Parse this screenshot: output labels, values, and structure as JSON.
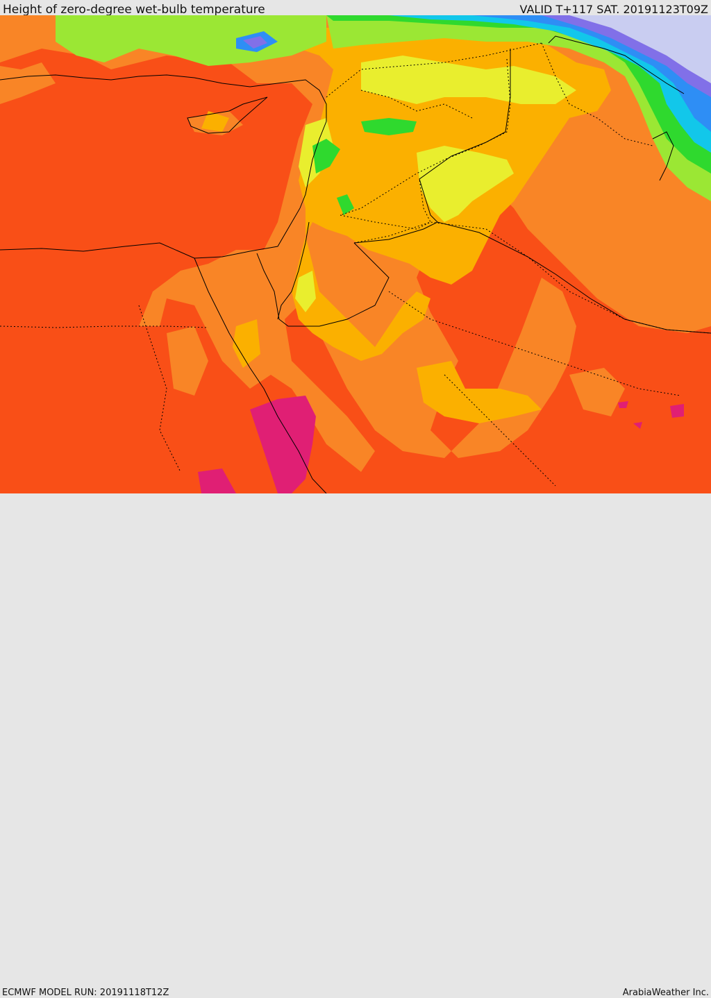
{
  "header": {
    "title": "Height of zero-degree wet-bulb temperature",
    "valid": "VALID T+117 SAT. 20191123T09Z"
  },
  "footer": {
    "model_run": "ECMWF MODEL RUN: 20191118T12Z",
    "credit": "ArabiaWeather Inc."
  },
  "colors": {
    "red_orange": "#f94f17",
    "orange": "#f98526",
    "amber": "#fbb000",
    "yellow": "#e9ee2e",
    "light_green": "#9be734",
    "green": "#2fd92e",
    "cyan": "#12c7ea",
    "blue": "#2e8ef5",
    "violet": "#8170e8",
    "lavender": "#c9cdf1",
    "magenta": "#e01f74"
  }
}
